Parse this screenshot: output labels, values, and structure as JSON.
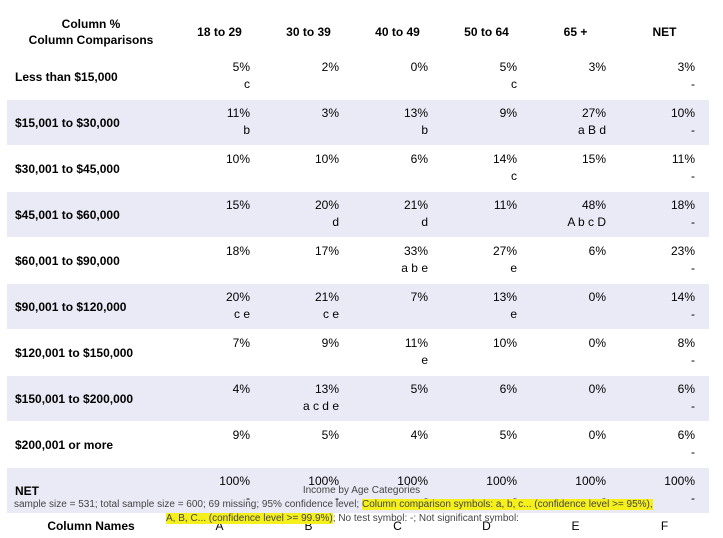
{
  "table": {
    "corner_line1": "Column %",
    "corner_line2": "Column Comparisons",
    "columns": [
      "18 to 29",
      "30 to 39",
      "40 to 49",
      "50 to 64",
      "65 +",
      "NET"
    ],
    "rows": [
      {
        "label": "Less than $15,000",
        "cells": [
          {
            "value": "5%",
            "sym": "c"
          },
          {
            "value": "2%",
            "sym": ""
          },
          {
            "value": "0%",
            "sym": ""
          },
          {
            "value": "5%",
            "sym": "c"
          },
          {
            "value": "3%",
            "sym": ""
          },
          {
            "value": "3%",
            "sym": "-"
          }
        ]
      },
      {
        "label": "$15,001 to $30,000",
        "cells": [
          {
            "value": "11%",
            "sym": "b"
          },
          {
            "value": "3%",
            "sym": ""
          },
          {
            "value": "13%",
            "sym": "b"
          },
          {
            "value": "9%",
            "sym": ""
          },
          {
            "value": "27%",
            "sym": "a B d"
          },
          {
            "value": "10%",
            "sym": "-"
          }
        ]
      },
      {
        "label": "$30,001 to $45,000",
        "cells": [
          {
            "value": "10%",
            "sym": ""
          },
          {
            "value": "10%",
            "sym": ""
          },
          {
            "value": "6%",
            "sym": ""
          },
          {
            "value": "14%",
            "sym": "c"
          },
          {
            "value": "15%",
            "sym": ""
          },
          {
            "value": "11%",
            "sym": "-"
          }
        ]
      },
      {
        "label": "$45,001 to $60,000",
        "cells": [
          {
            "value": "15%",
            "sym": ""
          },
          {
            "value": "20%",
            "sym": "d"
          },
          {
            "value": "21%",
            "sym": "d"
          },
          {
            "value": "11%",
            "sym": ""
          },
          {
            "value": "48%",
            "sym": "A b c D"
          },
          {
            "value": "18%",
            "sym": "-"
          }
        ]
      },
      {
        "label": "$60,001 to $90,000",
        "cells": [
          {
            "value": "18%",
            "sym": ""
          },
          {
            "value": "17%",
            "sym": ""
          },
          {
            "value": "33%",
            "sym": "a b e"
          },
          {
            "value": "27%",
            "sym": "e"
          },
          {
            "value": "6%",
            "sym": ""
          },
          {
            "value": "23%",
            "sym": "-"
          }
        ]
      },
      {
        "label": "$90,001 to $120,000",
        "cells": [
          {
            "value": "20%",
            "sym": "c e"
          },
          {
            "value": "21%",
            "sym": "c e"
          },
          {
            "value": "7%",
            "sym": ""
          },
          {
            "value": "13%",
            "sym": "e"
          },
          {
            "value": "0%",
            "sym": ""
          },
          {
            "value": "14%",
            "sym": "-"
          }
        ]
      },
      {
        "label": "$120,001 to $150,000",
        "cells": [
          {
            "value": "7%",
            "sym": ""
          },
          {
            "value": "9%",
            "sym": ""
          },
          {
            "value": "11%",
            "sym": "e"
          },
          {
            "value": "10%",
            "sym": ""
          },
          {
            "value": "0%",
            "sym": ""
          },
          {
            "value": "8%",
            "sym": "-"
          }
        ]
      },
      {
        "label": "$150,001 to $200,000",
        "cells": [
          {
            "value": "4%",
            "sym": ""
          },
          {
            "value": "13%",
            "sym": "a c d e"
          },
          {
            "value": "5%",
            "sym": ""
          },
          {
            "value": "6%",
            "sym": ""
          },
          {
            "value": "0%",
            "sym": ""
          },
          {
            "value": "6%",
            "sym": "-"
          }
        ]
      },
      {
        "label": "$200,001 or more",
        "cells": [
          {
            "value": "9%",
            "sym": ""
          },
          {
            "value": "5%",
            "sym": ""
          },
          {
            "value": "4%",
            "sym": ""
          },
          {
            "value": "5%",
            "sym": ""
          },
          {
            "value": "0%",
            "sym": ""
          },
          {
            "value": "6%",
            "sym": "-"
          }
        ]
      },
      {
        "label": "NET",
        "cells": [
          {
            "value": "100%",
            "sym": "-"
          },
          {
            "value": "100%",
            "sym": "-"
          },
          {
            "value": "100%",
            "sym": "-"
          },
          {
            "value": "100%",
            "sym": "-"
          },
          {
            "value": "100%",
            "sym": "-"
          },
          {
            "value": "100%",
            "sym": "-"
          }
        ]
      }
    ],
    "names_label": "Column Names",
    "names": [
      "A",
      "B",
      "C",
      "D",
      "E",
      "F"
    ]
  },
  "footer": {
    "title": "Income by Age Categories",
    "line1_plain": "sample size = 531; total sample size = 600; 69 missing; 95% confidence level; ",
    "line1_highlight": "Column comparison symbols: a, b, c... (confidence level >= 95%),",
    "line2_highlight": "A, B, C... (confidence level >= 99.9%)",
    "line2_plain": "; No test symbol: -; Not significant symbol:"
  },
  "colors": {
    "row_shade": "#eaeaf6",
    "highlight": "#f5f01c"
  }
}
